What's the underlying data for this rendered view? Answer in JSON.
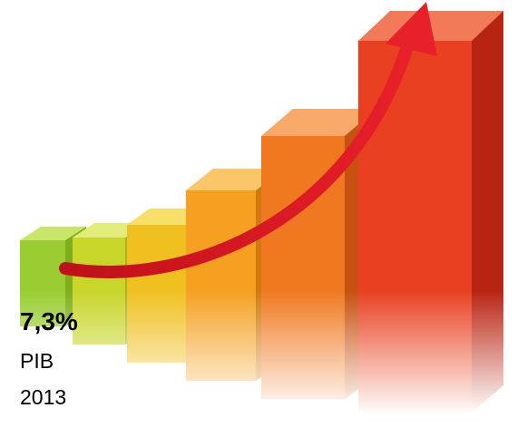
{
  "caption": {
    "value": "7,3%",
    "label": "PIB",
    "year": "2013"
  }
}
